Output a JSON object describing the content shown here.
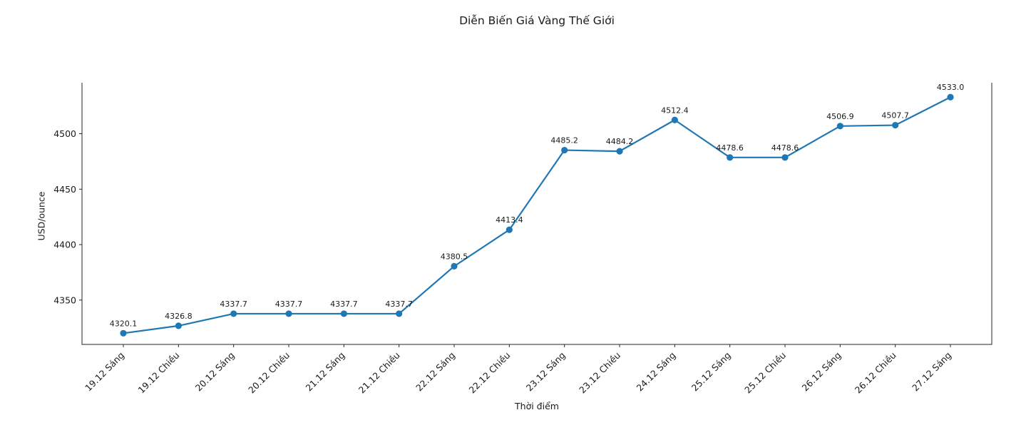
{
  "chart_data": {
    "type": "line",
    "title": "Diễn Biến Giá Vàng Thế Giới",
    "xlabel": "Thời điểm",
    "ylabel": "USD/ounce",
    "categories": [
      "19.12 Sáng",
      "19.12 Chiều",
      "20.12 Sáng",
      "20.12 Chiều",
      "21.12 Sáng",
      "21.12 Chiều",
      "22.12 Sáng",
      "22.12 Chiều",
      "23.12 Sáng",
      "23.12 Chiều",
      "24.12 Sáng",
      "25.12 Sáng",
      "25.12 Chiều",
      "26.12 Sáng",
      "26.12 Chiều",
      "27.12 Sáng"
    ],
    "values": [
      4320.1,
      4326.8,
      4337.7,
      4337.7,
      4337.7,
      4337.7,
      4380.5,
      4413.4,
      4485.2,
      4484.2,
      4512.4,
      4478.6,
      4478.6,
      4506.9,
      4507.7,
      4533.0
    ],
    "point_labels": [
      "4320.1",
      "4326.8",
      "4337.7",
      "4337.7",
      "4337.7",
      "4337.7",
      "4380.5",
      "4413.4",
      "4485.2",
      "4484.2",
      "4512.4",
      "4478.6",
      "4478.6",
      "4506.9",
      "4507.7",
      "4533.0"
    ],
    "yticks": [
      4350,
      4400,
      4450,
      4500
    ],
    "ylim": [
      4310,
      4546
    ],
    "grid": false,
    "legend": "none",
    "line_color": "#1f77b4",
    "marker_color": "#1f77b4",
    "marker": "circle",
    "spine_color": "#262626",
    "top_spine": false
  }
}
